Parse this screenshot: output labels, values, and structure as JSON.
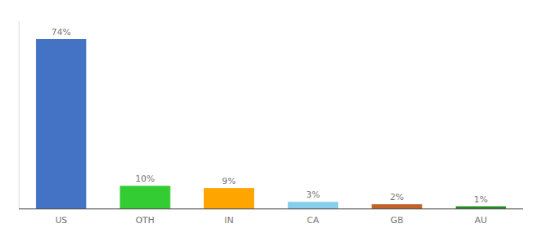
{
  "chart_data": {
    "type": "bar",
    "categories": [
      "US",
      "OTH",
      "IN",
      "CA",
      "GB",
      "AU"
    ],
    "values": [
      74,
      10,
      9,
      3,
      2,
      1
    ],
    "value_labels": [
      "74%",
      "10%",
      "9%",
      "3%",
      "2%",
      "1%"
    ],
    "colors": [
      "#4472C4",
      "#33CC33",
      "#FFA500",
      "#87CEEB",
      "#C0622A",
      "#228B22"
    ],
    "ylim": [
      0,
      82
    ],
    "data_labels": true,
    "tick_labels": "x"
  }
}
